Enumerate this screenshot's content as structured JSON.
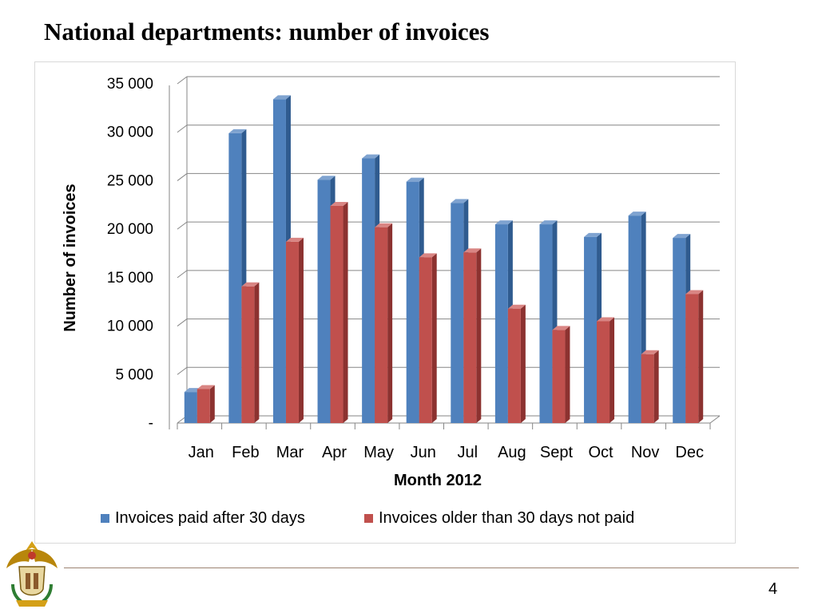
{
  "slide": {
    "title": "National departments: number of invoices",
    "page_number": "4"
  },
  "colors": {
    "series_paid": "#4f81bd",
    "series_paid_side": "#2f5b8f",
    "series_paid_top": "#7fa3d0",
    "series_unpaid": "#c0504d",
    "series_unpaid_side": "#8c3230",
    "series_unpaid_top": "#d98583",
    "gridline": "#868686",
    "footer_line": "#9c8372"
  },
  "chart_data": {
    "type": "bar",
    "style": "3d-clustered-column",
    "ylabel": "Number of invoices",
    "xlabel": "Month 2012",
    "ylim": [
      0,
      35000
    ],
    "yticks": [
      0,
      5000,
      10000,
      15000,
      20000,
      25000,
      30000,
      35000
    ],
    "ytick_labels": [
      "-",
      "5 000",
      "10 000",
      "15 000",
      "20 000",
      "25 000",
      "30 000",
      "35 000"
    ],
    "categories": [
      "Jan",
      "Feb",
      "Mar",
      "Apr",
      "May",
      "Jun",
      "Jul",
      "Aug",
      "Sept",
      "Oct",
      "Nov",
      "Dec"
    ],
    "series": [
      {
        "name": "Invoices paid after 30 days",
        "values": [
          3200,
          29900,
          33400,
          25100,
          27300,
          24900,
          22700,
          20500,
          20500,
          19200,
          21400,
          19100
        ]
      },
      {
        "name": "Invoices older than 30 days not paid",
        "values": [
          3500,
          14100,
          18700,
          22400,
          20200,
          17100,
          17600,
          11800,
          9600,
          10500,
          7100,
          13300
        ]
      }
    ],
    "grid": true,
    "legend": "bottom"
  }
}
